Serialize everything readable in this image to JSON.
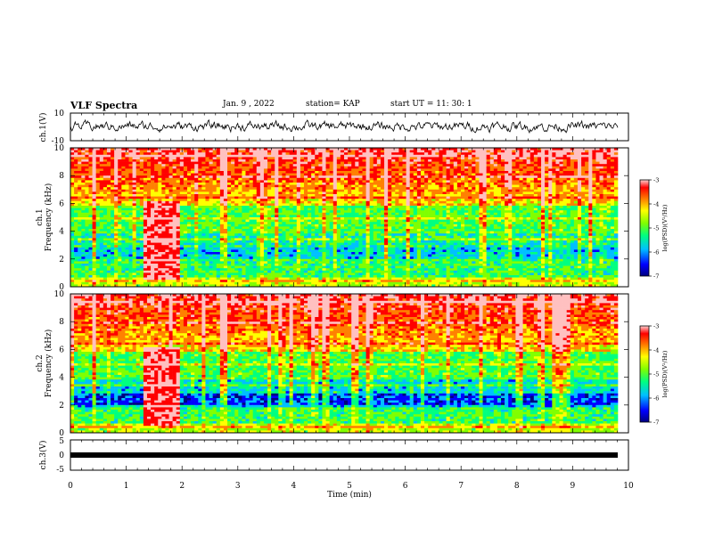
{
  "header": {
    "title": "VLF Spectra",
    "date": "Jan. 9 , 2022",
    "station": "station= KAP",
    "start_ut": "start UT = 11: 30: 1"
  },
  "panels": {
    "ch1_wave": {
      "ylabel": "ch.1(V)",
      "yticks": [
        "10",
        "-10"
      ]
    },
    "ch1_spec": {
      "ylabel_top": "ch.1",
      "ylabel": "Frequency (kHz)",
      "yticks": [
        "0",
        "2",
        "4",
        "6",
        "8",
        "10"
      ]
    },
    "ch2_spec": {
      "ylabel_top": "ch.2",
      "ylabel": "Frequency (kHz)",
      "yticks": [
        "0",
        "2",
        "4",
        "6",
        "8",
        "10"
      ]
    },
    "ch3_wave": {
      "ylabel": "ch.3(V)",
      "yticks": [
        "5",
        "0",
        "-5"
      ]
    }
  },
  "colorbar": {
    "label": "log(PSD)(V²/Hz)",
    "ticks": [
      "-3",
      "-4",
      "-5",
      "-6",
      "-7"
    ],
    "colors": [
      "#000080",
      "#0000ff",
      "#00c0ff",
      "#00ff80",
      "#80ff00",
      "#ffff00",
      "#ff8000",
      "#ff0000",
      "#ffc0c0"
    ]
  },
  "xaxis": {
    "label": "Time (min)",
    "ticks": [
      "0",
      "1",
      "2",
      "3",
      "4",
      "5",
      "6",
      "7",
      "8",
      "9",
      "10"
    ]
  },
  "chart_data": [
    {
      "type": "line",
      "title": "",
      "ylabel": "ch.1(V)",
      "xlabel": "",
      "xlim": [
        0,
        10
      ],
      "ylim": [
        -10,
        10
      ],
      "series": [
        {
          "x": [
            0,
            9.8
          ],
          "values": [
            0,
            0
          ]
        }
      ]
    },
    {
      "type": "heatmap",
      "ylabel": "Frequency (kHz)",
      "xlim": [
        0,
        10
      ],
      "ylim": [
        0,
        10
      ],
      "color_range": [
        -7,
        -3
      ],
      "colorbar_label": "log(PSD)(V²/Hz)"
    },
    {
      "type": "heatmap",
      "ylabel": "Frequency (kHz)",
      "xlim": [
        0,
        10
      ],
      "ylim": [
        0,
        10
      ],
      "color_range": [
        -7,
        -3
      ],
      "colorbar_label": "log(PSD)(V²/Hz)"
    },
    {
      "type": "line",
      "ylabel": "ch.3(V)",
      "xlabel": "Time (min)",
      "xlim": [
        0,
        10
      ],
      "ylim": [
        -5,
        5
      ],
      "series": [
        {
          "x": [
            0,
            9.8
          ],
          "values": [
            0,
            0
          ]
        }
      ]
    }
  ]
}
